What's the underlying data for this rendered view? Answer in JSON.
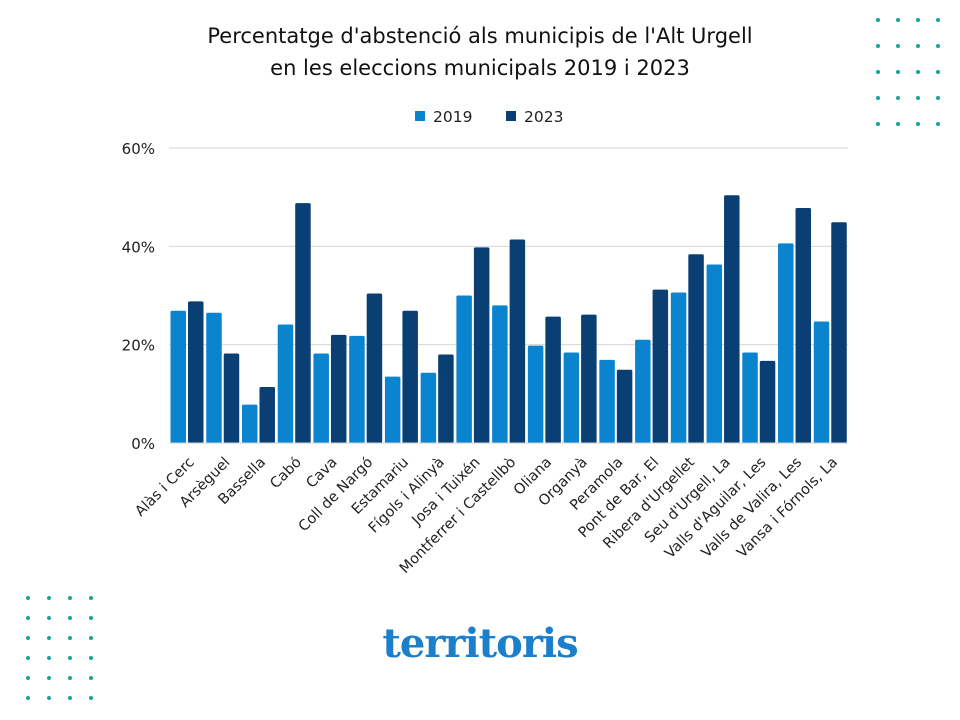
{
  "chart_data": {
    "type": "bar",
    "title": "Percentatge d'abstenció als municipis de l'Alt Urgell en les eleccions municipals 2019 i 2023",
    "title_lines": [
      "Percentatge d'abstenció als municipis de l'Alt Urgell",
      "en les eleccions municipals 2019 i 2023"
    ],
    "xlabel": "",
    "ylabel": "",
    "ylim": [
      0,
      60
    ],
    "yticks": [
      0,
      20,
      40,
      60
    ],
    "ytick_labels": [
      "0%",
      "20%",
      "40%",
      "60%"
    ],
    "grid": true,
    "legend_position": "top-center",
    "categories": [
      "Alàs i Cerc",
      "Arsèguel",
      "Bassella",
      "Cabó",
      "Cava",
      "Coll de Nargó",
      "Estamariu",
      "Fígols i Alinyà",
      "Josa i Tuixén",
      "Montferrer i Castellbò",
      "Oliana",
      "Organyà",
      "Peramola",
      "Pont de Bar, El",
      "Ribera d'Urgellet",
      "Seu d'Urgell, La",
      "Valls d'Aguilar, Les",
      "Valls de Valira, Les",
      "Vansa i Fórnols, La"
    ],
    "series": [
      {
        "name": "2019",
        "color": "#0b84cf",
        "values": [
          26.9,
          26.5,
          7.8,
          24.1,
          18.2,
          21.8,
          13.5,
          14.3,
          30.0,
          28.0,
          19.8,
          18.4,
          16.9,
          21.0,
          30.6,
          36.3,
          18.4,
          40.6,
          24.7
        ]
      },
      {
        "name": "2023",
        "color": "#0a3f73",
        "values": [
          28.8,
          18.2,
          11.4,
          48.8,
          22.0,
          30.4,
          26.9,
          18.0,
          39.8,
          41.4,
          25.7,
          26.1,
          14.9,
          31.2,
          38.4,
          50.4,
          16.7,
          47.8,
          44.9
        ]
      }
    ]
  },
  "logo": "territoris",
  "colors": {
    "dots": "#1aa39a",
    "logo": "#1b7fcc"
  }
}
